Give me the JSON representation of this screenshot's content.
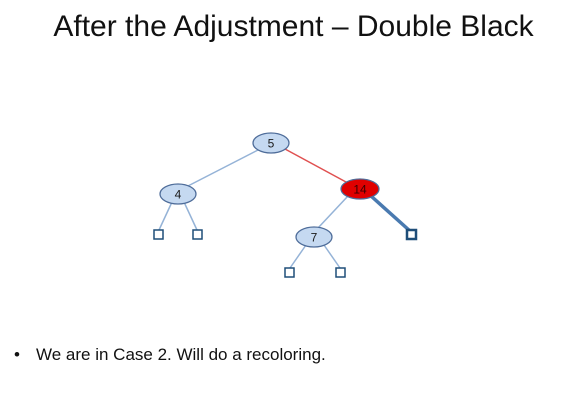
{
  "title": "After the Adjustment – Double Black",
  "tree": {
    "nodes": [
      {
        "id": "n5",
        "label": "5",
        "fill": "#c5d9f1"
      },
      {
        "id": "n4",
        "label": "4",
        "fill": "#c5d9f1"
      },
      {
        "id": "n14",
        "label": "14",
        "fill": "#e00000"
      },
      {
        "id": "n7",
        "label": "7",
        "fill": "#c5d9f1"
      }
    ],
    "colors": {
      "node_stroke": "#4f6d9a",
      "edge": "#95b3d7",
      "red_edge": "#e05050",
      "double_black_edge": "#4a7ab0",
      "leaf_stroke": "#1f4e79"
    }
  },
  "bullets": [
    "We are in Case 2. Will do a recoloring."
  ]
}
